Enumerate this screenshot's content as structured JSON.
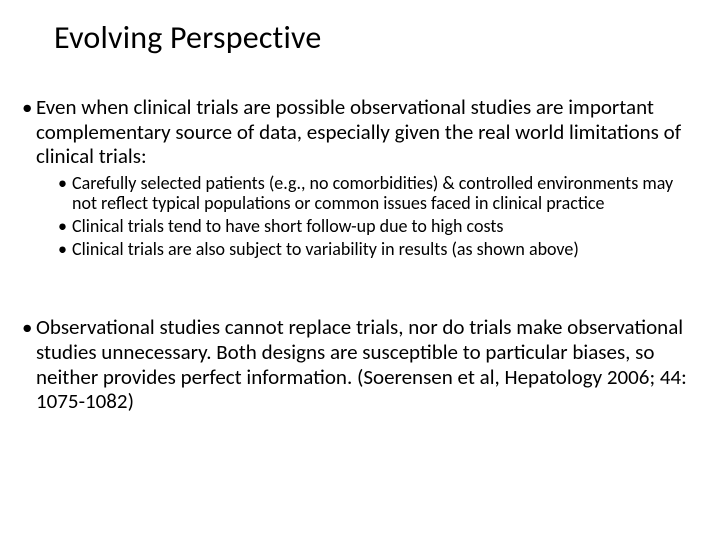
{
  "slide": {
    "title": "Evolving Perspective",
    "background_color": "#ffffff",
    "text_color": "#000000",
    "title_fontsize": 32,
    "body_fontsize_l1": 21,
    "body_fontsize_l2": 18,
    "font_family": "Calibri",
    "bullets": [
      {
        "text": "Even when clinical trials are possible observational studies are important complementary source of data, especially given the real world limitations of clinical trials:",
        "children": [
          {
            "text": "Carefully selected patients (e.g., no comorbidities) & controlled environments may not reflect typical populations or common issues faced in clinical practice"
          },
          {
            "text": "Clinical trials tend to have short follow-up due to high costs"
          },
          {
            "text": "Clinical trials are also subject to variability in results (as shown above)"
          }
        ]
      },
      {
        "text": "Observational studies cannot replace trials, nor do trials make observational studies unnecessary. Both designs are susceptible to particular biases, so neither provides perfect information. (Soerensen et al, Hepatology 2006; 44: 1075-1082)"
      }
    ]
  }
}
